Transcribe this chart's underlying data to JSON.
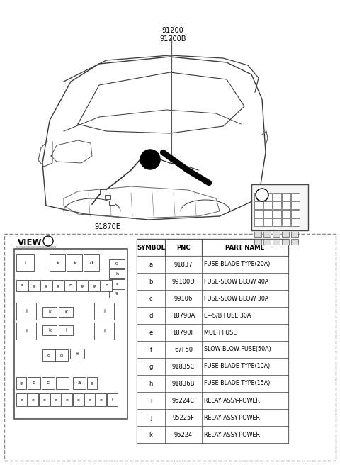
{
  "bg_color": "#ffffff",
  "label_91200": "91200\n91200B",
  "label_91870E": "91870E",
  "table_headers": [
    "SYMBOL",
    "PNC",
    "PART NAME"
  ],
  "table_rows": [
    [
      "a",
      "91837",
      "FUSE-BLADE TYPE(20A)"
    ],
    [
      "b",
      "99100D",
      "FUSE-SLOW BLOW 40A"
    ],
    [
      "c",
      "99106",
      "FUSE-SLOW BLOW 30A"
    ],
    [
      "d",
      "18790A",
      "LP-S/B FUSE 30A"
    ],
    [
      "e",
      "18790F",
      "MULTI FUSE"
    ],
    [
      "f",
      "67F50",
      "SLOW BLOW FUSE(50A)"
    ],
    [
      "g",
      "91835C",
      "FUSE-BLADE TYPE(10A)"
    ],
    [
      "h",
      "91836B",
      "FUSE-BLADE TYPE(15A)"
    ],
    [
      "i",
      "95224C",
      "RELAY ASSY-POWER"
    ],
    [
      "j",
      "95225F",
      "RELAY ASSY-POWER"
    ],
    [
      "k",
      "95224",
      "RELAY ASSY-POWER"
    ]
  ]
}
